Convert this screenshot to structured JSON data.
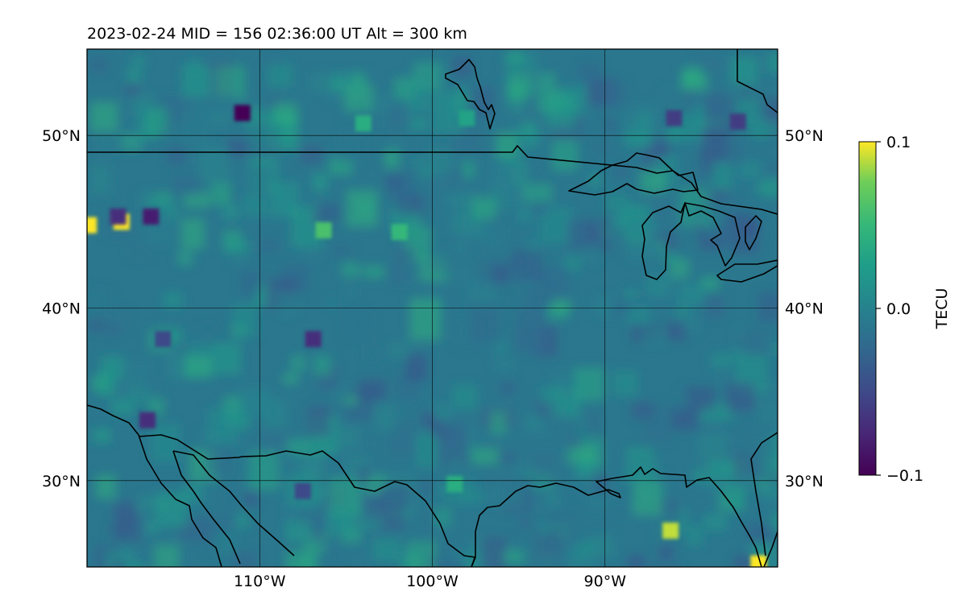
{
  "title": "2023-02-24  MID = 156    02:36:00  UT  Alt = 300 km",
  "map": {
    "extent": {
      "lon_min": -120,
      "lon_max": -80,
      "lat_min": 25,
      "lat_max": 55
    },
    "grid": true,
    "lon_ticks": [
      -110,
      -100,
      -90
    ],
    "lon_tick_labels": [
      "110°W",
      "100°W",
      "90°W"
    ],
    "lat_ticks": [
      50,
      40,
      30
    ],
    "lat_tick_labels": [
      "50°N",
      "40°N",
      "30°N"
    ],
    "colormap": "viridis",
    "background_value": -0.01,
    "coastline_color": "#000000"
  },
  "colorbar": {
    "label": "TECU",
    "min": -0.1,
    "max": 0.1,
    "ticks": [
      0.1,
      0.0,
      -0.1
    ],
    "tick_labels": [
      "0.1",
      "0.0",
      "−0.1"
    ]
  },
  "chart_data": {
    "type": "heatmap",
    "title": "2023-02-24  MID = 156    02:36:00  UT  Alt = 300 km",
    "xlabel": "",
    "ylabel": "",
    "value_label": "TECU",
    "vmin": -0.1,
    "vmax": 0.1,
    "features": [
      {
        "lon": -118,
        "lat": 45,
        "value": 0.1
      },
      {
        "lon": -119.9,
        "lat": 44.8,
        "value": 0.1
      },
      {
        "lon": -111,
        "lat": 51.3,
        "value": -0.1
      },
      {
        "lon": -116.3,
        "lat": 45.3,
        "value": -0.08
      },
      {
        "lon": -118.2,
        "lat": 45.3,
        "value": -0.07
      },
      {
        "lon": -104,
        "lat": 50.7,
        "value": 0.04
      },
      {
        "lon": -106.3,
        "lat": 44.5,
        "value": 0.06
      },
      {
        "lon": -98,
        "lat": 51,
        "value": 0.03
      },
      {
        "lon": -101.9,
        "lat": 44.4,
        "value": 0.05
      },
      {
        "lon": -98.7,
        "lat": 29.8,
        "value": 0.04
      },
      {
        "lon": -116.5,
        "lat": 33.5,
        "value": -0.07
      },
      {
        "lon": -107.5,
        "lat": 29.4,
        "value": -0.05
      },
      {
        "lon": -86.2,
        "lat": 27.1,
        "value": 0.09
      },
      {
        "lon": -81.1,
        "lat": 25.2,
        "value": 0.1
      },
      {
        "lon": -82.3,
        "lat": 50.8,
        "value": -0.06
      },
      {
        "lon": -86,
        "lat": 51,
        "value": -0.06
      },
      {
        "lon": -106.9,
        "lat": 38.2,
        "value": -0.07
      },
      {
        "lon": -115.6,
        "lat": 38.2,
        "value": -0.05
      }
    ]
  }
}
